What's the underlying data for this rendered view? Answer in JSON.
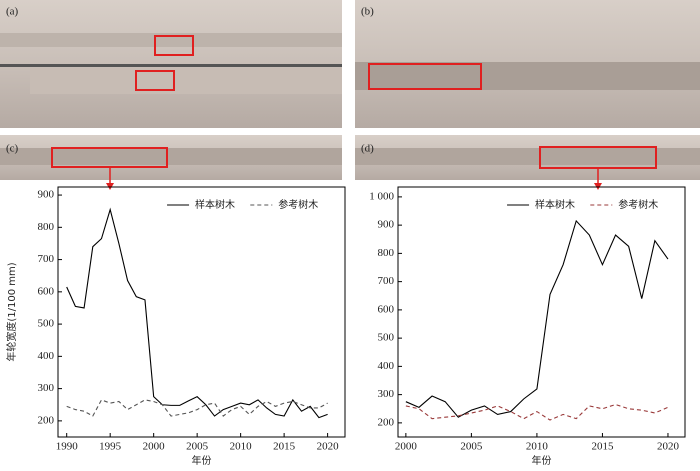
{
  "panels": [
    "(a)",
    "(b)",
    "(c)",
    "(d)"
  ],
  "chart_data": [
    {
      "type": "line",
      "xlabel": "年份",
      "ylabel": "年轮宽度(1/100 mm)",
      "x": [
        1990,
        1991,
        1992,
        1993,
        1994,
        1995,
        1996,
        1997,
        1998,
        1999,
        2000,
        2001,
        2002,
        2003,
        2004,
        2005,
        2006,
        2007,
        2008,
        2009,
        2010,
        2011,
        2012,
        2013,
        2014,
        2015,
        2016,
        2017,
        2018,
        2019,
        2020
      ],
      "series": [
        {
          "name": "样本树木",
          "color": "#000000",
          "dash": false,
          "values": [
            615,
            555,
            550,
            740,
            765,
            855,
            750,
            635,
            585,
            575,
            275,
            250,
            248,
            248,
            262,
            275,
            250,
            215,
            235,
            245,
            255,
            250,
            265,
            240,
            220,
            215,
            265,
            230,
            245,
            210,
            220
          ]
        },
        {
          "name": "参考树木",
          "color": "#555555",
          "dash": true,
          "values": [
            245,
            235,
            230,
            215,
            265,
            255,
            260,
            235,
            250,
            265,
            260,
            250,
            215,
            220,
            225,
            235,
            250,
            255,
            215,
            235,
            245,
            220,
            245,
            260,
            245,
            255,
            260,
            250,
            240,
            240,
            255
          ]
        }
      ],
      "xlim": [
        1989,
        2022
      ],
      "xticks": [
        1990,
        1995,
        2000,
        2005,
        2010,
        2015,
        2020
      ],
      "ylim": [
        150,
        925
      ],
      "yticks": [
        200,
        300,
        400,
        500,
        600,
        700,
        800,
        900
      ]
    },
    {
      "type": "line",
      "xlabel": "年份",
      "x": [
        2000,
        2001,
        2002,
        2003,
        2004,
        2005,
        2006,
        2007,
        2008,
        2009,
        2010,
        2011,
        2012,
        2013,
        2014,
        2015,
        2016,
        2017,
        2018,
        2019,
        2020
      ],
      "series": [
        {
          "name": "样本树木",
          "color": "#000000",
          "dash": false,
          "values": [
            275,
            255,
            295,
            275,
            220,
            245,
            260,
            230,
            240,
            285,
            320,
            655,
            760,
            915,
            865,
            760,
            865,
            825,
            640,
            845,
            780
          ]
        },
        {
          "name": "参考树木",
          "color": "#9a3a3a",
          "dash": true,
          "values": [
            260,
            250,
            215,
            220,
            225,
            235,
            245,
            260,
            240,
            215,
            240,
            210,
            230,
            215,
            260,
            250,
            265,
            250,
            245,
            235,
            255
          ]
        }
      ],
      "xlim": [
        1999.4,
        2021.3
      ],
      "xticks": [
        2000,
        2005,
        2010,
        2015,
        2020
      ],
      "ylim": [
        150,
        1035
      ],
      "yticks": [
        200,
        300,
        400,
        500,
        600,
        700,
        800,
        900,
        {
          "value": 1000,
          "label": "1 000"
        }
      ]
    }
  ]
}
